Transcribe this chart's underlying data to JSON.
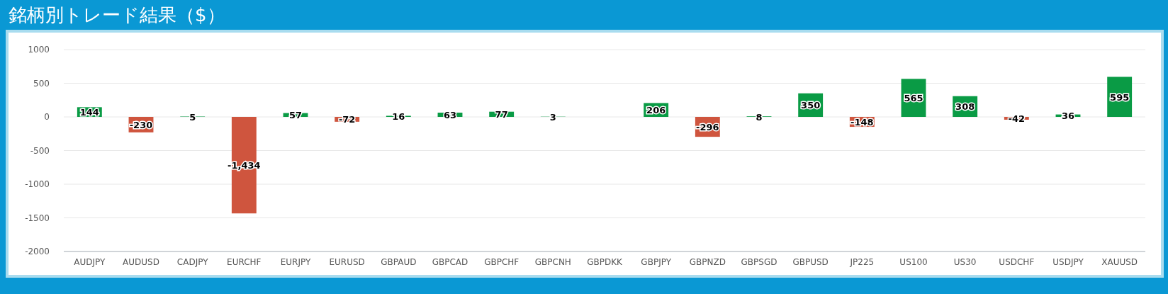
{
  "chart_data": {
    "type": "bar",
    "title": "銘柄別トレード結果（$）",
    "categories": [
      "AUDJPY",
      "AUDUSD",
      "CADJPY",
      "EURCHF",
      "EURJPY",
      "EURUSD",
      "GBPAUD",
      "GBPCAD",
      "GBPCHF",
      "GBPCNH",
      "GBPDKK",
      "GBPJPY",
      "GBPNZD",
      "GBPSGD",
      "GBPUSD",
      "JP225",
      "US100",
      "US30",
      "USDCHF",
      "USDJPY",
      "XAUUSD"
    ],
    "values": [
      144,
      -230,
      5,
      -1434,
      57,
      -72,
      16,
      63,
      77,
      3,
      null,
      206,
      -296,
      8,
      350,
      -148,
      565,
      308,
      -42,
      36,
      595
    ],
    "value_labels": [
      "144",
      "-230",
      "5",
      "-1,434",
      "57",
      "-72",
      "16",
      "63",
      "77",
      "3",
      null,
      "206",
      "-296",
      "8",
      "350",
      "-148",
      "565",
      "308",
      "-42",
      "36",
      "595"
    ],
    "colors": [
      "#0a9b45",
      "#cf553e",
      "#0a9b45",
      "#cf553e",
      "#0a9b45",
      "#cf553e",
      "#0a9b45",
      "#0a9b45",
      "#0a9b45",
      "#0a9b45",
      null,
      "#0a9b45",
      "#cf553e",
      "#0a9b45",
      "#0a9b45",
      "#cf553e",
      "#0a9b45",
      "#0a9b45",
      "#cf553e",
      "#0a9b45",
      "#0a9b45"
    ],
    "ylim": [
      -2000,
      1000
    ],
    "yticks": [
      -2000,
      -1500,
      -1000,
      -500,
      0,
      500,
      1000
    ],
    "grid": "y"
  }
}
